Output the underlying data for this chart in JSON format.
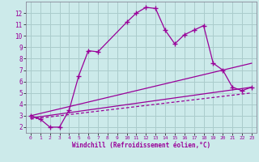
{
  "xlabel": "Windchill (Refroidissement éolien,°C)",
  "bg_color": "#cceaea",
  "grid_color": "#aacccc",
  "line_color": "#990099",
  "xlim": [
    -0.5,
    23.5
  ],
  "ylim": [
    1.5,
    13.0
  ],
  "xticks": [
    0,
    1,
    2,
    3,
    4,
    5,
    6,
    7,
    8,
    9,
    10,
    11,
    12,
    13,
    14,
    15,
    16,
    17,
    18,
    19,
    20,
    21,
    22,
    23
  ],
  "yticks": [
    2,
    3,
    4,
    5,
    6,
    7,
    8,
    9,
    10,
    11,
    12
  ],
  "series1_x": [
    0,
    1,
    2,
    3,
    4,
    5,
    6,
    7,
    10,
    11,
    12,
    13,
    14,
    15,
    16,
    17,
    18,
    19,
    20,
    21,
    22,
    23
  ],
  "series1_y": [
    3.0,
    2.7,
    2.0,
    2.0,
    3.5,
    6.5,
    8.7,
    8.6,
    11.2,
    12.0,
    12.5,
    12.4,
    10.5,
    9.3,
    10.1,
    10.5,
    10.9,
    7.6,
    7.0,
    5.5,
    5.2,
    5.5
  ],
  "series2_x": [
    0,
    23
  ],
  "series2_y": [
    3.0,
    7.6
  ],
  "series3_x": [
    0,
    23
  ],
  "series3_y": [
    2.8,
    5.5
  ],
  "series4_x": [
    0,
    23
  ],
  "series4_y": [
    2.7,
    5.0
  ]
}
